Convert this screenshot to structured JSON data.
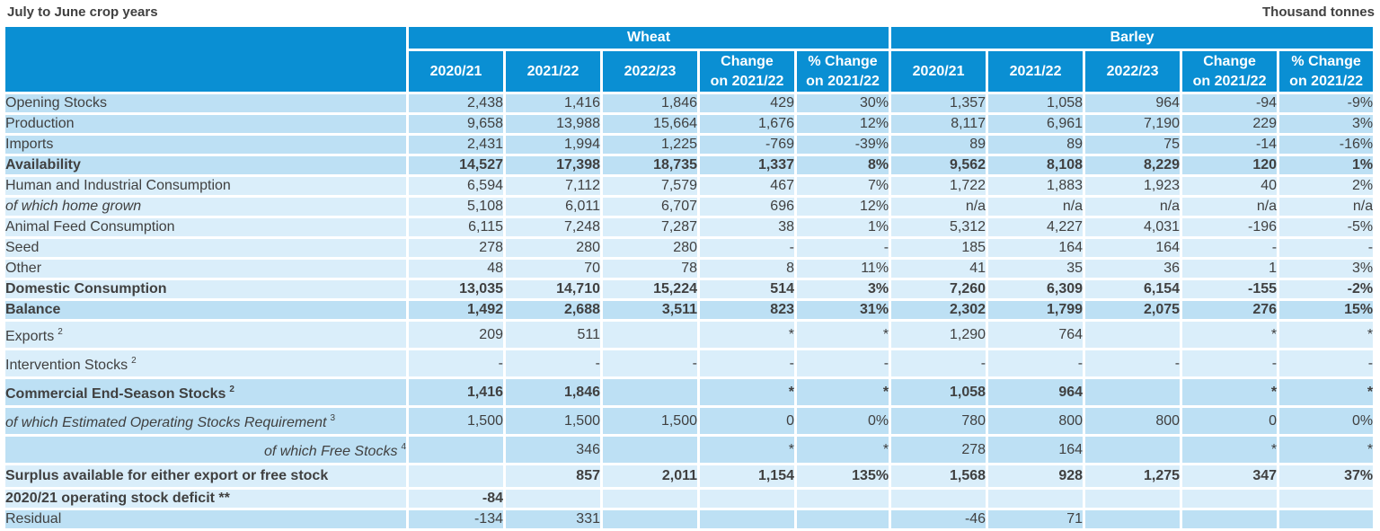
{
  "header": {
    "left": "July to June crop years",
    "right": "Thousand tonnes"
  },
  "groups": [
    "Wheat",
    "Barley"
  ],
  "columns": [
    "2020/21",
    "2021/22",
    "2022/23",
    "Change on 2021/22",
    "% Change on 2021/22"
  ],
  "rows": [
    {
      "label": "Opening Stocks",
      "style": "dark",
      "wheat": [
        "2,438",
        "1,416",
        "1,846",
        "429",
        "30%"
      ],
      "barley": [
        "1,357",
        "1,058",
        "964",
        "-94",
        "-9%"
      ]
    },
    {
      "label": "Production",
      "style": "dark",
      "wheat": [
        "9,658",
        "13,988",
        "15,664",
        "1,676",
        "12%"
      ],
      "barley": [
        "8,117",
        "6,961",
        "7,190",
        "229",
        "3%"
      ]
    },
    {
      "label": "Imports",
      "style": "dark",
      "wheat": [
        "2,431",
        "1,994",
        "1,225",
        "-769",
        "-39%"
      ],
      "barley": [
        "89",
        "89",
        "75",
        "-14",
        "-16%"
      ]
    },
    {
      "label": "Availability",
      "style": "dark bold",
      "wheat": [
        "14,527",
        "17,398",
        "18,735",
        "1,337",
        "8%"
      ],
      "barley": [
        "9,562",
        "8,108",
        "8,229",
        "120",
        "1%"
      ]
    },
    {
      "label": "Human and Industrial Consumption",
      "style": "light",
      "wheat": [
        "6,594",
        "7,112",
        "7,579",
        "467",
        "7%"
      ],
      "barley": [
        "1,722",
        "1,883",
        "1,923",
        "40",
        "2%"
      ]
    },
    {
      "label": "of which home grown",
      "style": "light",
      "indent": "ind1",
      "wheat": [
        "5,108",
        "6,011",
        "6,707",
        "696",
        "12%"
      ],
      "barley": [
        "n/a",
        "n/a",
        "n/a",
        "n/a",
        "n/a"
      ]
    },
    {
      "label": "Animal Feed Consumption",
      "style": "light",
      "wheat": [
        "6,115",
        "7,248",
        "7,287",
        "38",
        "1%"
      ],
      "barley": [
        "5,312",
        "4,227",
        "4,031",
        "-196",
        "-5%"
      ]
    },
    {
      "label": "Seed",
      "style": "light",
      "wheat": [
        "278",
        "280",
        "280",
        "-",
        "-"
      ],
      "barley": [
        "185",
        "164",
        "164",
        "-",
        "-"
      ]
    },
    {
      "label": "Other",
      "style": "light",
      "wheat": [
        "48",
        "70",
        "78",
        "8",
        "11%"
      ],
      "barley": [
        "41",
        "35",
        "36",
        "1",
        "3%"
      ]
    },
    {
      "label": "Domestic Consumption",
      "style": "light bold",
      "wheat": [
        "13,035",
        "14,710",
        "15,224",
        "514",
        "3%"
      ],
      "barley": [
        "7,260",
        "6,309",
        "6,154",
        "-155",
        "-2%"
      ]
    },
    {
      "label": "Balance",
      "style": "dark bold",
      "wheat": [
        "1,492",
        "2,688",
        "3,511",
        "823",
        "31%"
      ],
      "barley": [
        "2,302",
        "1,799",
        "2,075",
        "276",
        "15%"
      ]
    },
    {
      "label": "Exports",
      "sup": "2",
      "style": "light tall",
      "wheat": [
        "209",
        "511",
        "",
        "*",
        "*"
      ],
      "barley": [
        "1,290",
        "764",
        "",
        "*",
        "*"
      ]
    },
    {
      "label": "Intervention Stocks",
      "sup": "2",
      "style": "light tall",
      "wheat": [
        "-",
        "-",
        "-",
        "-",
        "-"
      ],
      "barley": [
        "-",
        "-",
        "-",
        "-",
        "-"
      ]
    },
    {
      "label": "Commercial End-Season Stocks",
      "sup": "2",
      "style": "dark bold tall",
      "wheat": [
        "1,416",
        "1,846",
        "",
        "*",
        "*"
      ],
      "barley": [
        "1,058",
        "964",
        "",
        "*",
        "*"
      ]
    },
    {
      "label": "of which Estimated Operating Stocks Requirement",
      "sup": "3",
      "style": "dark tall",
      "indent": "ind2",
      "wheat": [
        "1,500",
        "1,500",
        "1,500",
        "0",
        "0%"
      ],
      "barley": [
        "780",
        "800",
        "800",
        "0",
        "0%"
      ]
    },
    {
      "label": "of which Free Stocks",
      "sup": "4",
      "style": "dark tall",
      "indent": "ind3",
      "wheat": [
        "",
        "346",
        "",
        "*",
        "*"
      ],
      "barley": [
        "278",
        "164",
        "",
        "*",
        "*"
      ]
    },
    {
      "label": "Surplus available for either export or free stock",
      "style": "light bold tall",
      "wheat": [
        "",
        "857",
        "2,011",
        "1,154",
        "135%"
      ],
      "barley": [
        "1,568",
        "928",
        "1,275",
        "347",
        "37%"
      ]
    },
    {
      "label": "2020/21 operating stock deficit **",
      "style": "light bold",
      "wheat": [
        "-84",
        "",
        "",
        "",
        ""
      ],
      "barley": [
        "",
        "",
        "",
        "",
        ""
      ]
    },
    {
      "label": "Residual",
      "style": "dark",
      "wheat": [
        "-134",
        "331",
        "",
        "",
        ""
      ],
      "barley": [
        "-46",
        "71",
        "",
        "",
        ""
      ]
    }
  ]
}
